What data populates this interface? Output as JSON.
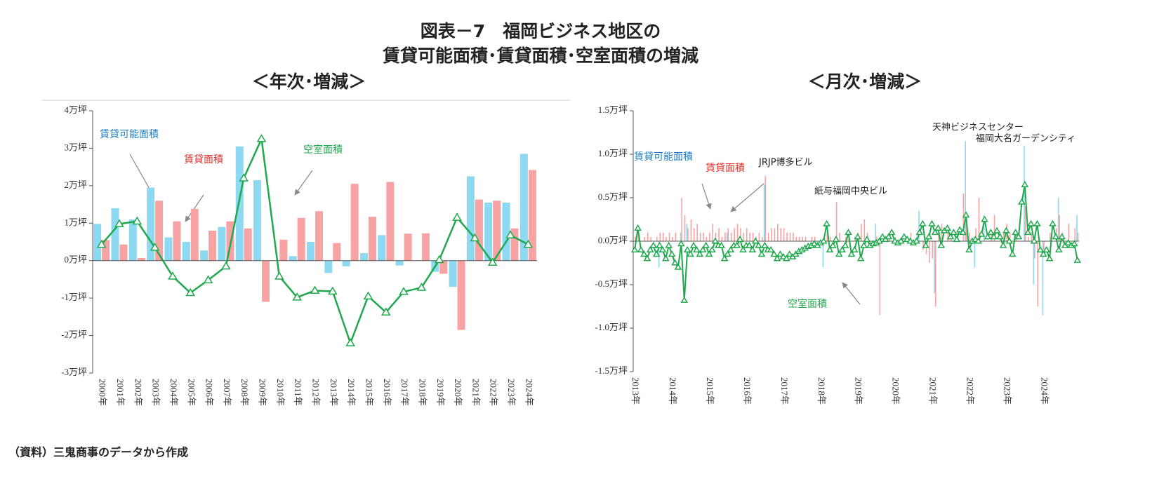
{
  "title": [
    "図表－7　福岡ビジネス地区の",
    "賃貸可能面積･賃貸面積･空室面積の増減"
  ],
  "source": "（資料）三鬼商事のデータから作成",
  "chart_data": [
    {
      "type": "combo",
      "title": "＜年次･増減＞",
      "categories": [
        "2000年",
        "2001年",
        "2002年",
        "2003年",
        "2004年",
        "2005年",
        "2006年",
        "2007年",
        "2008年",
        "2009年",
        "2010年",
        "2011年",
        "2012年",
        "2013年",
        "2014年",
        "2015年",
        "2016年",
        "2017年",
        "2018年",
        "2019年",
        "2020年",
        "2021年",
        "2022年",
        "2023年",
        "2024年"
      ],
      "ylim": [
        -3,
        4
      ],
      "yticks": [
        {
          "value": -3,
          "label": "-3万坪"
        },
        {
          "value": -2,
          "label": "-2万坪"
        },
        {
          "value": -1,
          "label": "-1万坪"
        },
        {
          "value": 0,
          "label": "0万坪"
        },
        {
          "value": 1,
          "label": "1万坪"
        },
        {
          "value": 2,
          "label": "2万坪"
        },
        {
          "value": 3,
          "label": "3万坪"
        },
        {
          "value": 4,
          "label": "4万坪"
        }
      ],
      "series": [
        {
          "name": "賃貸可能面積",
          "type": "bar",
          "color": "#8dd9f2",
          "label_color": "#1f7fc0",
          "values": [
            0.98,
            1.4,
            1.1,
            1.95,
            0.62,
            0.5,
            0.27,
            0.9,
            3.05,
            2.15,
            0,
            0.12,
            0.5,
            -0.33,
            -0.15,
            0.2,
            0.68,
            -0.13,
            0,
            -0.3,
            -0.7,
            2.25,
            1.55,
            1.55,
            2.85
          ]
        },
        {
          "name": "賃貸面積",
          "type": "bar",
          "color": "#f7a3a3",
          "label_color": "#e0302a",
          "values": [
            0.55,
            0.43,
            0.07,
            1.6,
            1.05,
            1.38,
            0.8,
            1.05,
            0.86,
            -1.1,
            0.56,
            1.14,
            1.32,
            0.47,
            2.05,
            1.17,
            2.1,
            0.72,
            0.73,
            -0.35,
            -1.85,
            1.63,
            1.6,
            0.86,
            2.42
          ]
        },
        {
          "name": "空室面積",
          "type": "line",
          "color": "#20a84e",
          "label_color": "#20a84e",
          "values": [
            0.43,
            0.98,
            1.05,
            0.35,
            -0.42,
            -0.86,
            -0.52,
            -0.15,
            2.2,
            3.25,
            -0.42,
            -0.98,
            -0.8,
            -0.82,
            -2.2,
            -0.95,
            -1.38,
            -0.83,
            -0.72,
            0.02,
            1.15,
            0.6,
            -0.05,
            0.68,
            0.43
          ]
        }
      ]
    },
    {
      "type": "combo",
      "title": "＜月次･増減＞",
      "categories": [
        "2013年",
        null,
        null,
        null,
        null,
        null,
        null,
        null,
        null,
        null,
        null,
        null,
        "2014年",
        null,
        null,
        null,
        null,
        null,
        null,
        null,
        null,
        null,
        null,
        null,
        "2015年",
        null,
        null,
        null,
        null,
        null,
        null,
        null,
        null,
        null,
        null,
        null,
        "2016年",
        null,
        null,
        null,
        null,
        null,
        null,
        null,
        null,
        null,
        null,
        null,
        "2017年",
        null,
        null,
        null,
        null,
        null,
        null,
        null,
        null,
        null,
        null,
        null,
        "2018年",
        null,
        null,
        null,
        null,
        null,
        null,
        null,
        null,
        null,
        null,
        null,
        "2019年",
        null,
        null,
        null,
        null,
        null,
        null,
        null,
        null,
        null,
        null,
        null,
        "2020年",
        null,
        null,
        null,
        null,
        null,
        null,
        null,
        null,
        null,
        null,
        null,
        "2021年",
        null,
        null,
        null,
        null,
        null,
        null,
        null,
        null,
        null,
        null,
        null,
        "2022年",
        null,
        null,
        null,
        null,
        null,
        null,
        null,
        null,
        null,
        null,
        null,
        "2023年",
        null,
        null,
        null,
        null,
        null,
        null,
        null,
        null,
        null,
        null,
        null,
        "2024年",
        null,
        null,
        null,
        null,
        null,
        null,
        null,
        null,
        null,
        null,
        null
      ],
      "ylim": [
        -1.5,
        1.5
      ],
      "yticks": [
        {
          "value": -1.5,
          "label": "-1.5万坪"
        },
        {
          "value": -1.0,
          "label": "-1.0万坪"
        },
        {
          "value": -0.5,
          "label": "-0.5万坪"
        },
        {
          "value": 0,
          "label": "0.0万坪"
        },
        {
          "value": 0.5,
          "label": "0.5万坪"
        },
        {
          "value": 1.0,
          "label": "1.0万坪"
        },
        {
          "value": 1.5,
          "label": "1.5万坪"
        }
      ],
      "series": [
        {
          "name": "賃貸可能面積",
          "type": "bar",
          "color": "#8dd9f2",
          "label_color": "#1f7fc0",
          "values": [
            0,
            0,
            0,
            0,
            0,
            0,
            0,
            0,
            -0.3,
            0,
            0,
            0,
            0,
            0,
            0,
            0.1,
            0,
            0.2,
            0,
            0,
            0,
            0,
            0,
            0,
            0,
            0,
            0,
            0,
            0,
            0,
            0.1,
            0,
            0,
            0,
            0,
            0,
            0,
            0,
            0,
            0,
            0,
            0,
            0.65,
            0,
            0,
            0,
            0,
            0,
            0,
            0,
            0,
            0,
            0,
            0,
            0,
            0,
            0,
            0,
            0,
            0,
            0,
            -0.3,
            0,
            0,
            0,
            0,
            0,
            0,
            0,
            0,
            0,
            0,
            0,
            0,
            0,
            0,
            0,
            0,
            0.2,
            0,
            0,
            0,
            0,
            0,
            0,
            0,
            0,
            0,
            0,
            0,
            0,
            0,
            0.35,
            0,
            0,
            0,
            0,
            -0.6,
            0,
            0,
            0,
            0,
            0,
            0,
            0,
            0,
            0,
            1.15,
            0,
            0,
            -0.3,
            0,
            0,
            0.3,
            0,
            0,
            0,
            0,
            0,
            0,
            0,
            0,
            0,
            0,
            0,
            0,
            1.1,
            0,
            0,
            -0.5,
            0,
            0,
            -0.85,
            0,
            0,
            0,
            0,
            0.5,
            0,
            0,
            0,
            0,
            0,
            0.3
          ]
        },
        {
          "name": "賃貸面積",
          "type": "bar",
          "color": "#f7a3a3",
          "label_color": "#e0302a",
          "values": [
            0.05,
            0.1,
            0,
            0.05,
            0.1,
            0.05,
            0,
            0.05,
            0.1,
            0.1,
            0.05,
            0.1,
            0.05,
            0.1,
            0,
            0.5,
            0.3,
            0.15,
            0.25,
            0.15,
            0.2,
            0.1,
            0.1,
            0.05,
            0.1,
            0.2,
            0.1,
            0.15,
            0.05,
            0.1,
            0.15,
            0.1,
            0.15,
            0.2,
            0.15,
            0.1,
            0.15,
            0.1,
            0.1,
            0.05,
            0.1,
            0.05,
            0.75,
            0.1,
            0.15,
            0.15,
            0.2,
            0.15,
            0.15,
            0.1,
            0.1,
            0.1,
            0.05,
            0.05,
            0.05,
            0.05,
            0,
            0.05,
            0.05,
            0,
            0,
            0.05,
            0.1,
            0.05,
            0,
            0.45,
            0.1,
            0,
            0.05,
            0.1,
            0,
            0.05,
            0.1,
            0.2,
            0.25,
            0.1,
            0,
            0,
            0.05,
            -0.85,
            0,
            0,
            0.05,
            0,
            0.05,
            0,
            0,
            0,
            0,
            0.1,
            0,
            0,
            0,
            -0.1,
            -0.15,
            -0.25,
            -0.2,
            -0.75,
            0.1,
            0.2,
            0,
            0.1,
            0.05,
            0,
            0.1,
            0,
            0.55,
            0.2,
            0.1,
            0,
            0.15,
            0.5,
            0,
            0,
            0,
            0.1,
            0.3,
            0,
            0.05,
            0.1,
            0.2,
            0.1,
            0,
            0.1,
            0,
            0,
            0.4,
            0.05,
            0.1,
            -0.2,
            -0.75,
            0,
            -0.1,
            0,
            0.1,
            0,
            0.15,
            0.3,
            0.1,
            0,
            0.2,
            0,
            0.15,
            0.1
          ]
        },
        {
          "name": "空室面積",
          "type": "line",
          "color": "#20a84e",
          "label_color": "#20a84e",
          "values": [
            -0.1,
            0.15,
            -0.1,
            -0.15,
            -0.2,
            -0.1,
            -0.05,
            -0.15,
            -0.05,
            -0.1,
            -0.2,
            -0.05,
            -0.15,
            -0.25,
            -0.3,
            -0.03,
            -0.68,
            -0.1,
            -0.15,
            -0.05,
            -0.1,
            -0.15,
            -0.1,
            -0.05,
            -0.15,
            -0.1,
            0,
            -0.05,
            -0.05,
            -0.2,
            -0.15,
            -0.1,
            -0.05,
            -0.05,
            0.02,
            -0.1,
            -0.05,
            -0.05,
            -0.1,
            0,
            -0.05,
            -0.15,
            -0.05,
            -0.1,
            -0.1,
            -0.15,
            -0.2,
            -0.15,
            -0.18,
            -0.2,
            -0.15,
            -0.18,
            -0.15,
            -0.12,
            -0.1,
            -0.08,
            -0.06,
            -0.05,
            -0.03,
            -0.05,
            -0.02,
            0,
            0.2,
            -0.1,
            -0.05,
            0.02,
            -0.15,
            -0.1,
            -0.05,
            0.1,
            -0.15,
            -0.1,
            0.05,
            -0.2,
            -0.05,
            0.02,
            -0.05,
            -0.03,
            -0.02,
            0,
            0.05,
            0.02,
            0.05,
            0.1,
            0,
            -0.02,
            0,
            0.05,
            0.02,
            0,
            -0.02,
            0,
            0.1,
            0.2,
            -0.05,
            0.05,
            0.2,
            0.1,
            0.15,
            -0.05,
            0.12,
            0.15,
            0.05,
            0.1,
            0.02,
            0.13,
            0.1,
            0.3,
            -0.1,
            0,
            0.02,
            0,
            0.08,
            0.25,
            0.05,
            0.1,
            0.05,
            0.12,
            0.05,
            -0.05,
            0.12,
            0,
            -0.15,
            0.1,
            0.05,
            0.45,
            0.65,
            0.1,
            0.2,
            0,
            0.2,
            -0.1,
            -0.15,
            -0.1,
            -0.2,
            0.2,
            0.05,
            -0.1,
            0.05,
            -0.05,
            -0.02,
            -0.05,
            -0.03,
            -0.22
          ]
        }
      ],
      "annotations": [
        "JRJP博多ビル",
        "紙与福岡中央ビル",
        "天神ビジネスセンター",
        "福岡大名ガーデンシティ"
      ]
    }
  ]
}
